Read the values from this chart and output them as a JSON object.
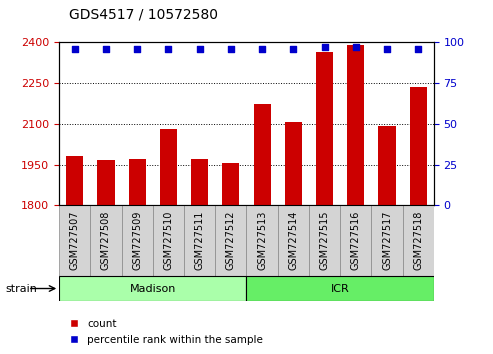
{
  "title": "GDS4517 / 10572580",
  "samples": [
    "GSM727507",
    "GSM727508",
    "GSM727509",
    "GSM727510",
    "GSM727511",
    "GSM727512",
    "GSM727513",
    "GSM727514",
    "GSM727515",
    "GSM727516",
    "GSM727517",
    "GSM727518"
  ],
  "counts": [
    1982,
    1967,
    1971,
    2080,
    1971,
    1955,
    2175,
    2107,
    2365,
    2390,
    2093,
    2235
  ],
  "percentiles": [
    96,
    96,
    96,
    96,
    96,
    96,
    96,
    96,
    97,
    97,
    96,
    96
  ],
  "ylim_left": [
    1800,
    2400
  ],
  "ylim_right": [
    0,
    100
  ],
  "yticks_left": [
    1800,
    1950,
    2100,
    2250,
    2400
  ],
  "yticks_right": [
    0,
    25,
    50,
    75,
    100
  ],
  "bar_color": "#cc0000",
  "dot_color": "#0000cc",
  "strain_groups": [
    {
      "label": "Madison",
      "start": 0,
      "end": 6,
      "color": "#aaffaa"
    },
    {
      "label": "ICR",
      "start": 6,
      "end": 12,
      "color": "#66ee66"
    }
  ],
  "strain_label": "strain",
  "legend_count_label": "count",
  "legend_pct_label": "percentile rank within the sample",
  "title_fontsize": 10,
  "tick_fontsize": 8,
  "bar_width": 0.55,
  "xtick_bg_color": "#d4d4d4",
  "xtick_border_color": "#888888"
}
